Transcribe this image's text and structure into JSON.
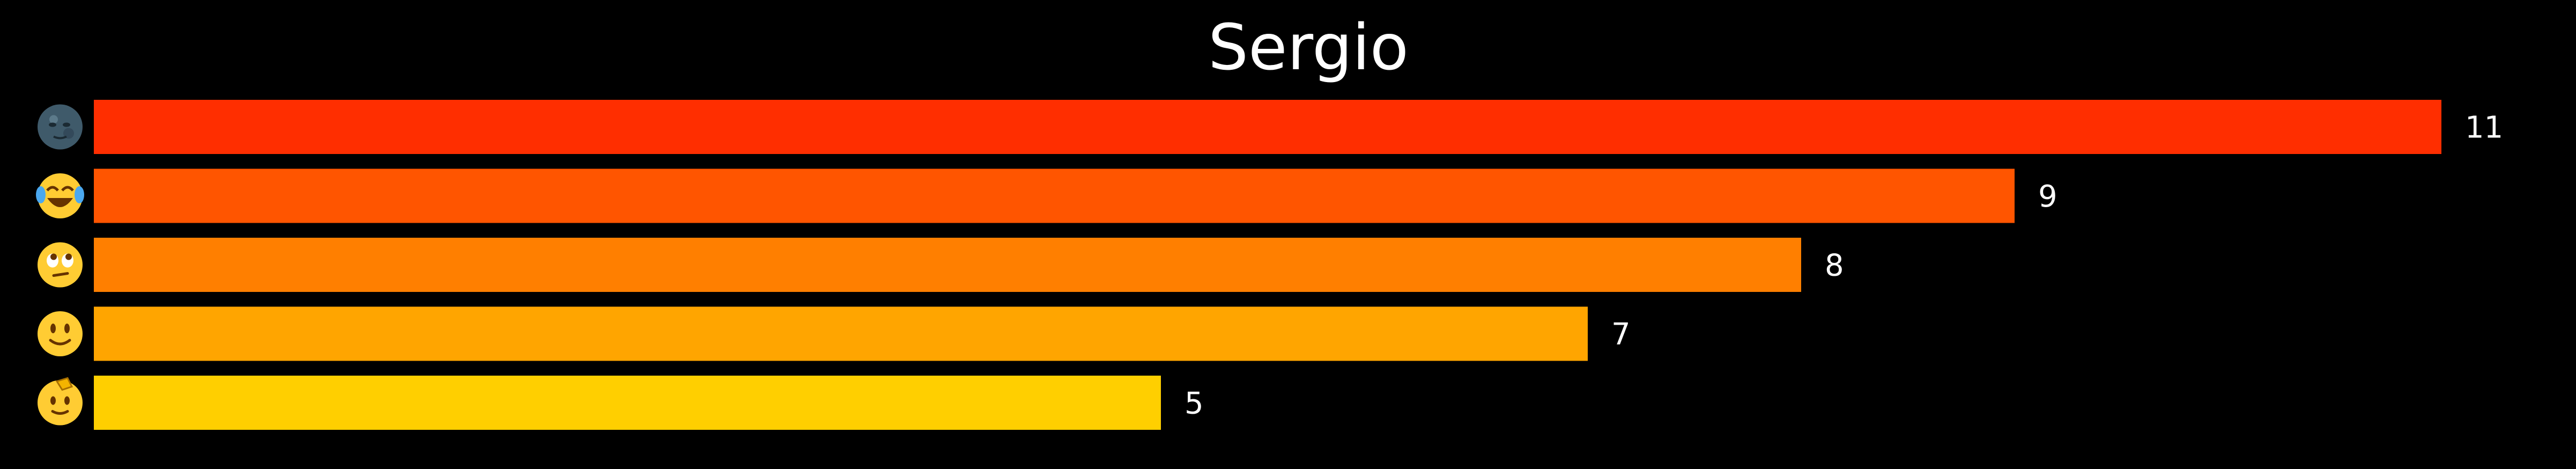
{
  "chart_data": {
    "type": "bar",
    "orientation": "horizontal",
    "title": "Sergio",
    "xlabel": "",
    "ylabel": "",
    "xlim": [
      0,
      11
    ],
    "grid": false,
    "legend": "none",
    "background": "#000000",
    "label_color": "#ffffff",
    "categories": [
      {
        "icon": "new-moon-face-emoji",
        "emoji": "🌚"
      },
      {
        "icon": "face-with-tears-of-joy-emoji",
        "emoji": "😂"
      },
      {
        "icon": "face-with-rolling-eyes-emoji",
        "emoji": "🙄"
      },
      {
        "icon": "slightly-smiling-face-emoji",
        "emoji": "🙂"
      },
      {
        "icon": "saluting-face-emoji",
        "emoji": "🫡"
      }
    ],
    "values": [
      11,
      9,
      8,
      7,
      5
    ],
    "value_labels": [
      "11",
      "9",
      "8",
      "7",
      "5"
    ],
    "colors": [
      "#ff2e00",
      "#ff5500",
      "#ff7f00",
      "#ffa500",
      "#ffcf00"
    ]
  }
}
